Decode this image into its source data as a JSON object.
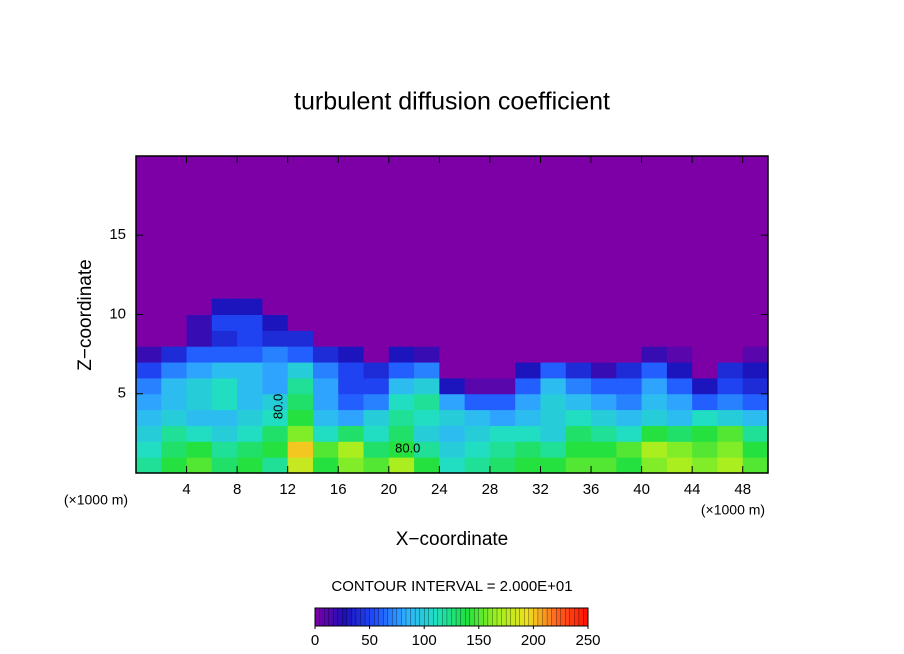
{
  "chart_data": {
    "type": "heatmap",
    "title": "turbulent diffusion coefficient",
    "x_label": "X−coordinate",
    "y_label": "Z−coordinate",
    "x_unit": "(×1000 m)",
    "y_unit": "(×1000 m)",
    "xlim": [
      0,
      50
    ],
    "ylim": [
      0,
      20
    ],
    "xticks": [
      4,
      8,
      12,
      16,
      20,
      24,
      28,
      32,
      36,
      40,
      44,
      48
    ],
    "yticks": [
      5,
      10,
      15
    ],
    "x": [
      1,
      3,
      5,
      7,
      9,
      11,
      13,
      15,
      17,
      19,
      21,
      23,
      25,
      27,
      29,
      31,
      33,
      35,
      37,
      39,
      41,
      43,
      45,
      47,
      49
    ],
    "y": [
      0.5,
      1.5,
      2.5,
      3.5,
      4.5,
      5.5,
      6.5,
      7.5,
      8.5,
      9.5,
      10.5
    ],
    "z": [
      [
        120,
        140,
        150,
        130,
        140,
        120,
        180,
        140,
        160,
        150,
        170,
        140,
        110,
        120,
        130,
        140,
        140,
        150,
        150,
        140,
        160,
        170,
        160,
        170,
        150
      ],
      [
        110,
        130,
        140,
        120,
        130,
        140,
        200,
        150,
        170,
        130,
        140,
        120,
        100,
        110,
        120,
        130,
        120,
        140,
        140,
        150,
        170,
        160,
        150,
        160,
        140
      ],
      [
        100,
        120,
        110,
        100,
        110,
        130,
        160,
        110,
        130,
        110,
        130,
        100,
        90,
        100,
        110,
        110,
        100,
        130,
        120,
        110,
        140,
        130,
        140,
        150,
        120
      ],
      [
        90,
        100,
        90,
        90,
        100,
        110,
        140,
        90,
        80,
        100,
        120,
        110,
        100,
        90,
        80,
        90,
        100,
        110,
        100,
        90,
        100,
        90,
        110,
        100,
        90
      ],
      [
        80,
        90,
        100,
        110,
        90,
        100,
        130,
        80,
        60,
        70,
        110,
        120,
        80,
        60,
        60,
        80,
        100,
        90,
        80,
        70,
        90,
        80,
        60,
        70,
        60
      ],
      [
        70,
        90,
        100,
        110,
        90,
        80,
        120,
        80,
        50,
        50,
        90,
        100,
        30,
        10,
        10,
        60,
        90,
        70,
        60,
        60,
        80,
        60,
        30,
        50,
        40
      ],
      [
        50,
        70,
        80,
        90,
        90,
        80,
        100,
        70,
        50,
        40,
        60,
        70,
        0,
        0,
        0,
        30,
        60,
        40,
        20,
        40,
        60,
        30,
        0,
        40,
        30
      ],
      [
        20,
        40,
        60,
        60,
        60,
        70,
        60,
        40,
        30,
        0,
        30,
        20,
        0,
        0,
        0,
        0,
        0,
        0,
        0,
        0,
        20,
        10,
        0,
        0,
        10
      ],
      [
        0,
        0,
        20,
        40,
        50,
        40,
        40,
        0,
        0,
        0,
        0,
        0,
        0,
        0,
        0,
        0,
        0,
        0,
        0,
        0,
        0,
        0,
        0,
        0,
        0
      ],
      [
        0,
        0,
        20,
        50,
        50,
        30,
        0,
        0,
        0,
        0,
        0,
        0,
        0,
        0,
        0,
        0,
        0,
        0,
        0,
        0,
        0,
        0,
        0,
        0,
        0
      ],
      [
        0,
        0,
        0,
        30,
        30,
        0,
        0,
        0,
        0,
        0,
        0,
        0,
        0,
        0,
        0,
        0,
        0,
        0,
        0,
        0,
        0,
        0,
        0,
        0,
        0
      ]
    ],
    "background": "#7c00a6",
    "colorscale": [
      "#7c00a6",
      "#1c10b8",
      "#2050ff",
      "#30b0ff",
      "#20e0c0",
      "#20e040",
      "#a0f020",
      "#f0e020",
      "#ff6020",
      "#ff1000"
    ],
    "contour_interval": "CONTOUR INTERVAL = 2.000E+01",
    "contour_labels": [
      "80.0",
      "80.0"
    ],
    "zlim": [
      0,
      250
    ],
    "zticks": [
      0,
      50,
      100,
      150,
      200,
      250
    ]
  }
}
